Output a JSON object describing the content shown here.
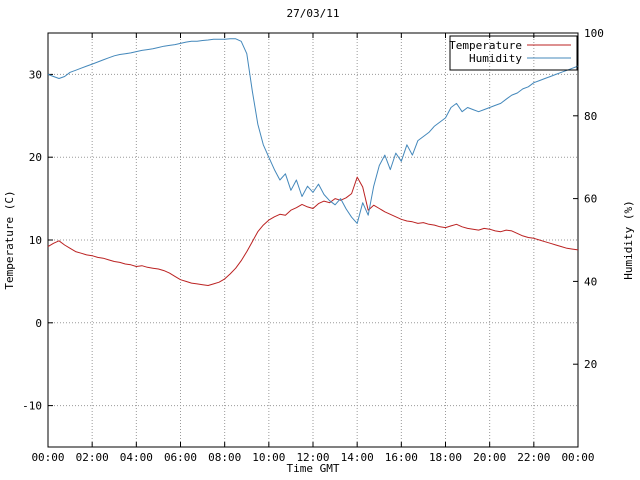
{
  "chart_data": {
    "type": "line",
    "title": "27/03/11",
    "xlabel": "Time GMT",
    "ylabel": "Temperature (C)",
    "y2label": "Humidity (%)",
    "grid": true,
    "legend_position": "top-right-inside-box",
    "x_range_hours": [
      0,
      24
    ],
    "x_ticks": [
      0,
      2,
      4,
      6,
      8,
      10,
      12,
      14,
      16,
      18,
      20,
      22,
      24
    ],
    "x_ticklabels": [
      "00:00",
      "02:00",
      "04:00",
      "06:00",
      "08:00",
      "10:00",
      "12:00",
      "14:00",
      "16:00",
      "18:00",
      "20:00",
      "22:00",
      "00:00"
    ],
    "y_left": {
      "range": [
        -15,
        35
      ],
      "ticks": [
        30,
        20,
        10,
        0,
        -10
      ]
    },
    "y_right": {
      "range": [
        0,
        100
      ],
      "ticks": [
        100,
        80,
        60,
        40,
        20
      ]
    },
    "sampling": {
      "start_hour": 0,
      "interval_hours": 0.25,
      "points": 97
    },
    "series": [
      {
        "name": "Temperature",
        "axis": "left",
        "color": "#bb2222",
        "values": [
          9.2,
          9.6,
          9.9,
          9.4,
          9.0,
          8.6,
          8.4,
          8.2,
          8.1,
          7.9,
          7.8,
          7.6,
          7.4,
          7.3,
          7.1,
          7.0,
          6.8,
          6.9,
          6.7,
          6.6,
          6.5,
          6.3,
          6.0,
          5.6,
          5.2,
          5.0,
          4.8,
          4.7,
          4.6,
          4.5,
          4.7,
          4.9,
          5.3,
          5.9,
          6.6,
          7.5,
          8.6,
          9.8,
          11.0,
          11.8,
          12.4,
          12.8,
          13.1,
          13.0,
          13.6,
          13.9,
          14.3,
          14.0,
          13.8,
          14.4,
          14.7,
          14.5,
          15.0,
          14.8,
          15.1,
          15.6,
          17.6,
          16.4,
          13.6,
          14.2,
          13.8,
          13.4,
          13.1,
          12.8,
          12.5,
          12.3,
          12.2,
          12.0,
          12.1,
          11.9,
          11.8,
          11.6,
          11.5,
          11.7,
          11.9,
          11.6,
          11.4,
          11.3,
          11.2,
          11.4,
          11.3,
          11.1,
          11.0,
          11.2,
          11.1,
          10.8,
          10.5,
          10.3,
          10.2,
          10.0,
          9.8,
          9.6,
          9.4,
          9.2,
          9.0,
          8.9,
          8.8
        ]
      },
      {
        "name": "Humidity",
        "axis": "right",
        "color": "#4488bb",
        "values": [
          90,
          89.5,
          89,
          89.5,
          90.5,
          91,
          91.5,
          92,
          92.5,
          93,
          93.5,
          94,
          94.5,
          94.8,
          95,
          95.2,
          95.5,
          95.8,
          96,
          96.2,
          96.5,
          96.8,
          97,
          97.2,
          97.5,
          97.8,
          98,
          98,
          98.2,
          98.3,
          98.5,
          98.5,
          98.5,
          98.6,
          98.6,
          98,
          95,
          86,
          78,
          73,
          70,
          67,
          64.5,
          66,
          62,
          64.5,
          60.5,
          63,
          61.5,
          63.5,
          61,
          59.5,
          58.5,
          60,
          57.5,
          55.5,
          54,
          59,
          56,
          63,
          68,
          70.5,
          67,
          71,
          69,
          73,
          70.5,
          74,
          75,
          76,
          77.5,
          78.5,
          79.5,
          82,
          83,
          81,
          82,
          81.5,
          81,
          81.5,
          82,
          82.5,
          83,
          84,
          85,
          85.5,
          86.5,
          87,
          88,
          88.5,
          89,
          89.5,
          90,
          90.5,
          91,
          91.5,
          92
        ]
      }
    ]
  },
  "colors": {
    "background": "#ffffff",
    "plot_border": "#000000",
    "grid": "#9a9a9a",
    "text": "#000000",
    "temperature_line": "#bb2222",
    "humidity_line": "#4488bb"
  }
}
